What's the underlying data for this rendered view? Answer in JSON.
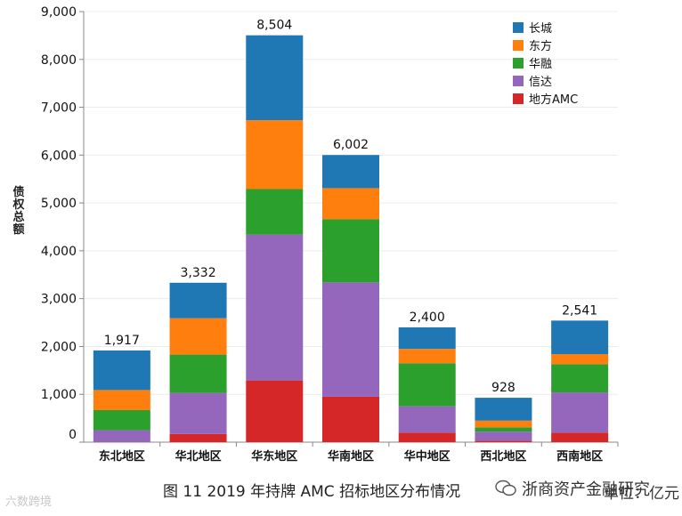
{
  "chart_data": {
    "type": "bar",
    "stacked": true,
    "title": "",
    "xlabel": "",
    "ylabel": "债权总额",
    "ylim": [
      0,
      9000
    ],
    "yticks": [
      "0",
      "1,000",
      "2,000",
      "3,000",
      "4,000",
      "5,000",
      "6,000",
      "7,000",
      "8,000",
      "9,000"
    ],
    "ytick_values": [
      0,
      1000,
      2000,
      3000,
      4000,
      5000,
      6000,
      7000,
      8000,
      9000
    ],
    "categories": [
      "东北地区",
      "华北地区",
      "华东地区",
      "华南地区",
      "华中地区",
      "西北地区",
      "西南地区"
    ],
    "totals": [
      1917,
      3332,
      8504,
      6002,
      2400,
      928,
      2541
    ],
    "total_labels": [
      "1,917",
      "3,332",
      "8,504",
      "6,002",
      "2,400",
      "928",
      "2,541"
    ],
    "series": [
      {
        "name": "地方AMC",
        "color": "#d62728",
        "values": [
          0,
          170,
          1290,
          950,
          200,
          30,
          200
        ]
      },
      {
        "name": "信达",
        "color": "#9467bd",
        "values": [
          250,
          860,
          3050,
          2390,
          550,
          190,
          840
        ]
      },
      {
        "name": "华融",
        "color": "#2ca02c",
        "values": [
          420,
          800,
          950,
          1320,
          900,
          90,
          590
        ]
      },
      {
        "name": "东方",
        "color": "#ff7f0e",
        "values": [
          420,
          760,
          1440,
          650,
          300,
          140,
          210
        ]
      },
      {
        "name": "长城",
        "color": "#1f77b4",
        "values": [
          827,
          742,
          1774,
          692,
          450,
          478,
          701
        ]
      }
    ],
    "legend_order": [
      "长城",
      "东方",
      "华融",
      "信达",
      "地方AMC"
    ],
    "legend_position": "top-right",
    "grid": true
  },
  "caption": "图 11 2019 年持牌 AMC 招标地区分布情况",
  "unit_label": "单位：亿元",
  "watermark_left": "六数跨境",
  "watermark_right": "浙商资产金融研究"
}
